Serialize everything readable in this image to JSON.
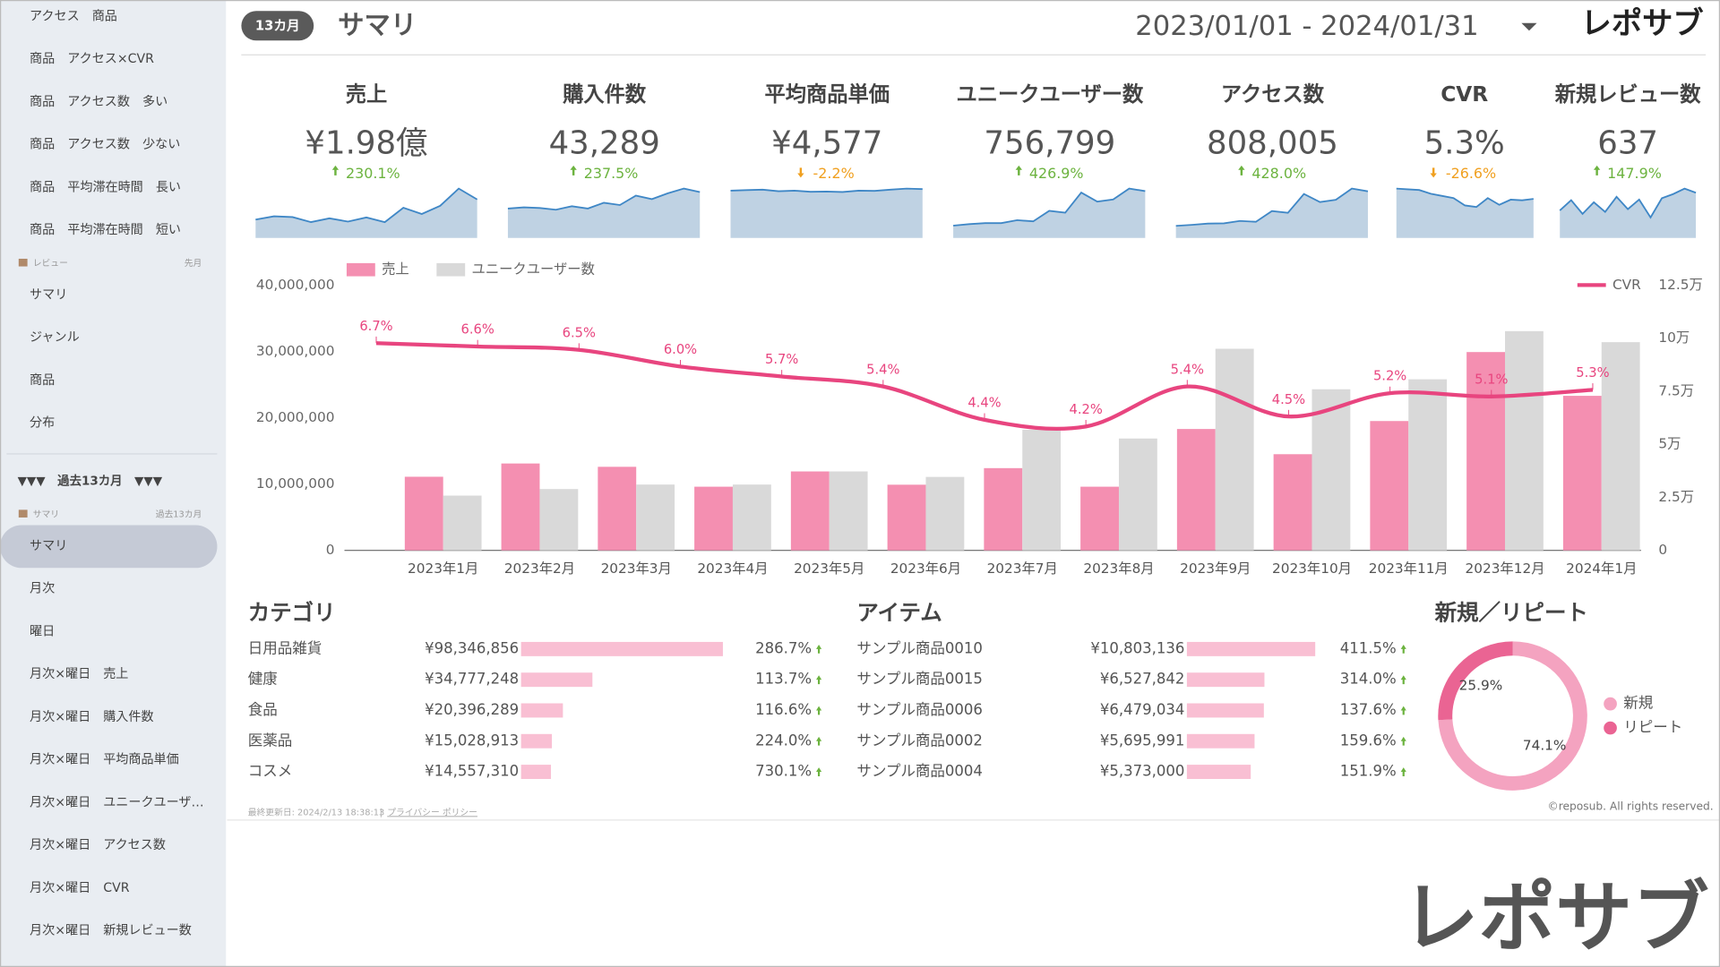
{
  "header": {
    "badge": "13カ月",
    "title": "サマリ",
    "date_range": "2023/01/01 - 2024/01/31",
    "logo": "レポサブ"
  },
  "sidebar": {
    "items": [
      {
        "label": "アクセス　商品",
        "kind": "item"
      },
      {
        "label": "商品　アクセス×CVR",
        "kind": "item"
      },
      {
        "label": "商品　アクセス数　多い",
        "kind": "item"
      },
      {
        "label": "商品　アクセス数　少ない",
        "kind": "item"
      },
      {
        "label": "商品　平均滞在時間　長い",
        "kind": "item"
      },
      {
        "label": "商品　平均滞在時間　短い",
        "kind": "item"
      },
      {
        "label": "レビュー",
        "note": "先月",
        "kind": "subheader"
      },
      {
        "label": "サマリ",
        "kind": "item"
      },
      {
        "label": "ジャンル",
        "kind": "item"
      },
      {
        "label": "商品",
        "kind": "item"
      },
      {
        "label": "分布",
        "kind": "item"
      },
      {
        "label": "▼▼▼　過去13カ月　▼▼▼",
        "kind": "header"
      },
      {
        "label": "サマリ",
        "note": "過去13カ月",
        "kind": "subheader"
      },
      {
        "label": "サマリ",
        "kind": "active"
      },
      {
        "label": "月次",
        "kind": "item"
      },
      {
        "label": "曜日",
        "kind": "item"
      },
      {
        "label": "月次×曜日　売上",
        "kind": "item"
      },
      {
        "label": "月次×曜日　購入件数",
        "kind": "item"
      },
      {
        "label": "月次×曜日　平均商品単価",
        "kind": "item"
      },
      {
        "label": "月次×曜日　ユニークユーザ…",
        "kind": "item"
      },
      {
        "label": "月次×曜日　アクセス数",
        "kind": "item"
      },
      {
        "label": "月次×曜日　CVR",
        "kind": "item"
      },
      {
        "label": "月次×曜日　新規レビュー数",
        "kind": "item"
      }
    ]
  },
  "kpis": [
    {
      "label": "売上",
      "value": "¥1.98億",
      "change": "230.1%",
      "trend": "up",
      "sparkline": [
        11100000,
        13100000,
        12600000,
        9600000,
        11900000,
        9900000,
        12400000,
        9600000,
        18300000,
        14500000,
        19500000,
        29900000,
        23300000
      ]
    },
    {
      "label": "購入件数",
      "value": "43,289",
      "change": "237.5%",
      "trend": "up",
      "sparkline": [
        2500,
        2600,
        2550,
        2400,
        2700,
        2500,
        3000,
        2800,
        3600,
        3300,
        3800,
        4200,
        3900
      ]
    },
    {
      "label": "平均商品単価",
      "value": "¥4,577",
      "change": "-2.2%",
      "trend": "down",
      "sparkline": [
        4500,
        4550,
        4600,
        4450,
        4500,
        4400,
        4420,
        4380,
        4500,
        4480,
        4600,
        4700,
        4650
      ]
    },
    {
      "label": "ユニークユーザー数",
      "value": "756,799",
      "change": "426.9%",
      "trend": "up",
      "sparkline": [
        25800,
        28900,
        31000,
        31000,
        37200,
        34600,
        56800,
        52700,
        95000,
        75900,
        80600,
        103300,
        98100
      ]
    },
    {
      "label": "アクセス数",
      "value": "808,005",
      "change": "428.0%",
      "trend": "up",
      "sparkline": [
        27000,
        29000,
        32000,
        32500,
        38000,
        36000,
        60000,
        56000,
        98000,
        80000,
        85000,
        110000,
        104000
      ]
    },
    {
      "label": "CVR",
      "value": "5.3%",
      "change": "-26.6%",
      "trend": "down",
      "sparkline": [
        6.7,
        6.6,
        6.5,
        6.0,
        5.7,
        5.4,
        4.4,
        4.2,
        5.4,
        4.5,
        5.2,
        5.1,
        5.3
      ]
    },
    {
      "label": "新規レビュー数",
      "value": "637",
      "change": "147.9%",
      "trend": "up",
      "sparkline": [
        40,
        55,
        35,
        52,
        38,
        60,
        42,
        56,
        30,
        58,
        64,
        72,
        66
      ]
    }
  ],
  "chart_data": [
    {
      "type": "combo",
      "categories": [
        "2023年1月",
        "2023年2月",
        "2023年3月",
        "2023年4月",
        "2023年5月",
        "2023年6月",
        "2023年7月",
        "2023年8月",
        "2023年9月",
        "2023年10月",
        "2023年11月",
        "2023年12月",
        "2024年1月"
      ],
      "series": [
        {
          "name": "売上",
          "type": "bar",
          "color": "#f48fb1",
          "values": [
            11100000,
            13100000,
            12600000,
            9600000,
            11900000,
            9900000,
            12400000,
            9600000,
            18300000,
            14500000,
            19500000,
            29900000,
            23300000
          ]
        },
        {
          "name": "ユニークユーザー数",
          "type": "bar",
          "axis": "y2",
          "color": "#d9d9d9",
          "values": [
            25800,
            28900,
            31000,
            31000,
            37200,
            34600,
            56800,
            52700,
            95000,
            75900,
            80600,
            103300,
            98100
          ]
        },
        {
          "name": "CVR",
          "type": "line",
          "color": "#e8457f",
          "values": [
            6.7,
            6.6,
            6.5,
            6.0,
            5.7,
            5.4,
            4.4,
            4.2,
            5.4,
            4.5,
            5.2,
            5.1,
            5.3
          ],
          "value_labels": [
            "6.7%",
            "6.6%",
            "6.5%",
            "6.0%",
            "5.7%",
            "5.4%",
            "4.4%",
            "4.2%",
            "5.4%",
            "4.5%",
            "5.2%",
            "5.1%",
            "5.3%"
          ]
        }
      ],
      "ylim": [
        0,
        40000000
      ],
      "yticks": [
        0,
        {
          "value": 10000000,
          "label": "10,000,000"
        },
        {
          "value": 20000000,
          "label": "20,000,000"
        },
        {
          "value": 30000000,
          "label": "30,000,000"
        },
        {
          "value": 40000000,
          "label": "40,000,000"
        }
      ],
      "y2lim": [
        0,
        125000
      ],
      "y2ticks": [
        0,
        {
          "value": 25000,
          "label": "2.5万"
        },
        {
          "value": 50000,
          "label": "5万"
        },
        {
          "value": 75000,
          "label": "7.5万"
        },
        {
          "value": 100000,
          "label": "10万"
        },
        {
          "value": 125000,
          "label": "12.5万"
        }
      ]
    },
    {
      "type": "pie",
      "title": "新規／リピート",
      "donut": true,
      "categories": [
        "新規",
        "リピート"
      ],
      "values": [
        74.1,
        25.9
      ],
      "value_labels": [
        "74.1%",
        "25.9%"
      ],
      "colors": [
        "#f4a3c0",
        "#ea6493"
      ]
    }
  ],
  "category_table": {
    "title": "カテゴリ",
    "color": "#f9bfd3",
    "rows": [
      {
        "name": "日用品雑貨",
        "value": 98346856,
        "value_label": "¥98,346,856",
        "change": "286.7%",
        "trend": "up"
      },
      {
        "name": "健康",
        "value": 34777248,
        "value_label": "¥34,777,248",
        "change": "113.7%",
        "trend": "up"
      },
      {
        "name": "食品",
        "value": 20396289,
        "value_label": "¥20,396,289",
        "change": "116.6%",
        "trend": "up"
      },
      {
        "name": "医薬品",
        "value": 15028913,
        "value_label": "¥15,028,913",
        "change": "224.0%",
        "trend": "up"
      },
      {
        "name": "コスメ",
        "value": 14557310,
        "value_label": "¥14,557,310",
        "change": "730.1%",
        "trend": "up"
      }
    ]
  },
  "item_table": {
    "title": "アイテム",
    "color": "#f9bfd3",
    "rows": [
      {
        "name": "サンプル商品0010",
        "value": 10803136,
        "value_label": "¥10,803,136",
        "change": "411.5%",
        "trend": "up"
      },
      {
        "name": "サンプル商品0015",
        "value": 6527842,
        "value_label": "¥6,527,842",
        "change": "314.0%",
        "trend": "up"
      },
      {
        "name": "サンプル商品0006",
        "value": 6479034,
        "value_label": "¥6,479,034",
        "change": "137.6%",
        "trend": "up"
      },
      {
        "name": "サンプル商品0002",
        "value": 5695991,
        "value_label": "¥5,695,991",
        "change": "159.6%",
        "trend": "up"
      },
      {
        "name": "サンプル商品0004",
        "value": 5373000,
        "value_label": "¥5,373,000",
        "change": "151.9%",
        "trend": "up"
      }
    ]
  },
  "footer": {
    "updated": "最終更新日: 2024/2/13 18:38:13",
    "privacy": "プライバシー ポリシー",
    "copyright": "©reposub. All rights reserved.",
    "watermark": "レポサブ"
  }
}
